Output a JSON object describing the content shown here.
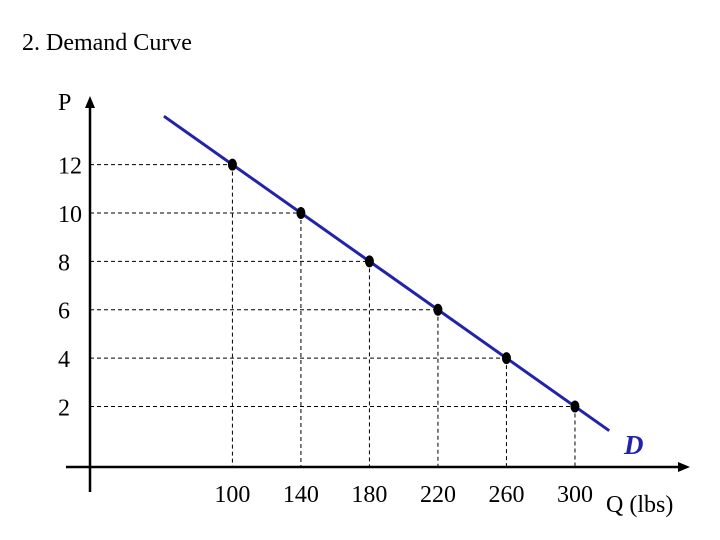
{
  "colors": {
    "axis": "#000000",
    "curve": "#2222aa",
    "point": "#000000",
    "guide": "#000000",
    "curve_label": "#2222aa"
  },
  "chart_data": {
    "type": "line",
    "title": "2. Demand Curve",
    "xlabel": "Q (lbs)",
    "ylabel": "P",
    "x_ticks": [
      100,
      140,
      180,
      220,
      260,
      300
    ],
    "y_ticks": [
      2,
      4,
      6,
      8,
      10,
      12
    ],
    "xlim": [
      4,
      366
    ],
    "ylim": [
      -0.5,
      15
    ],
    "grid": false,
    "series": [
      {
        "name": "D",
        "x": [
          100,
          140,
          180,
          220,
          260,
          300
        ],
        "y": [
          12,
          10,
          8,
          6,
          4,
          2
        ],
        "line_extent_x": [
          60,
          320
        ]
      }
    ]
  }
}
